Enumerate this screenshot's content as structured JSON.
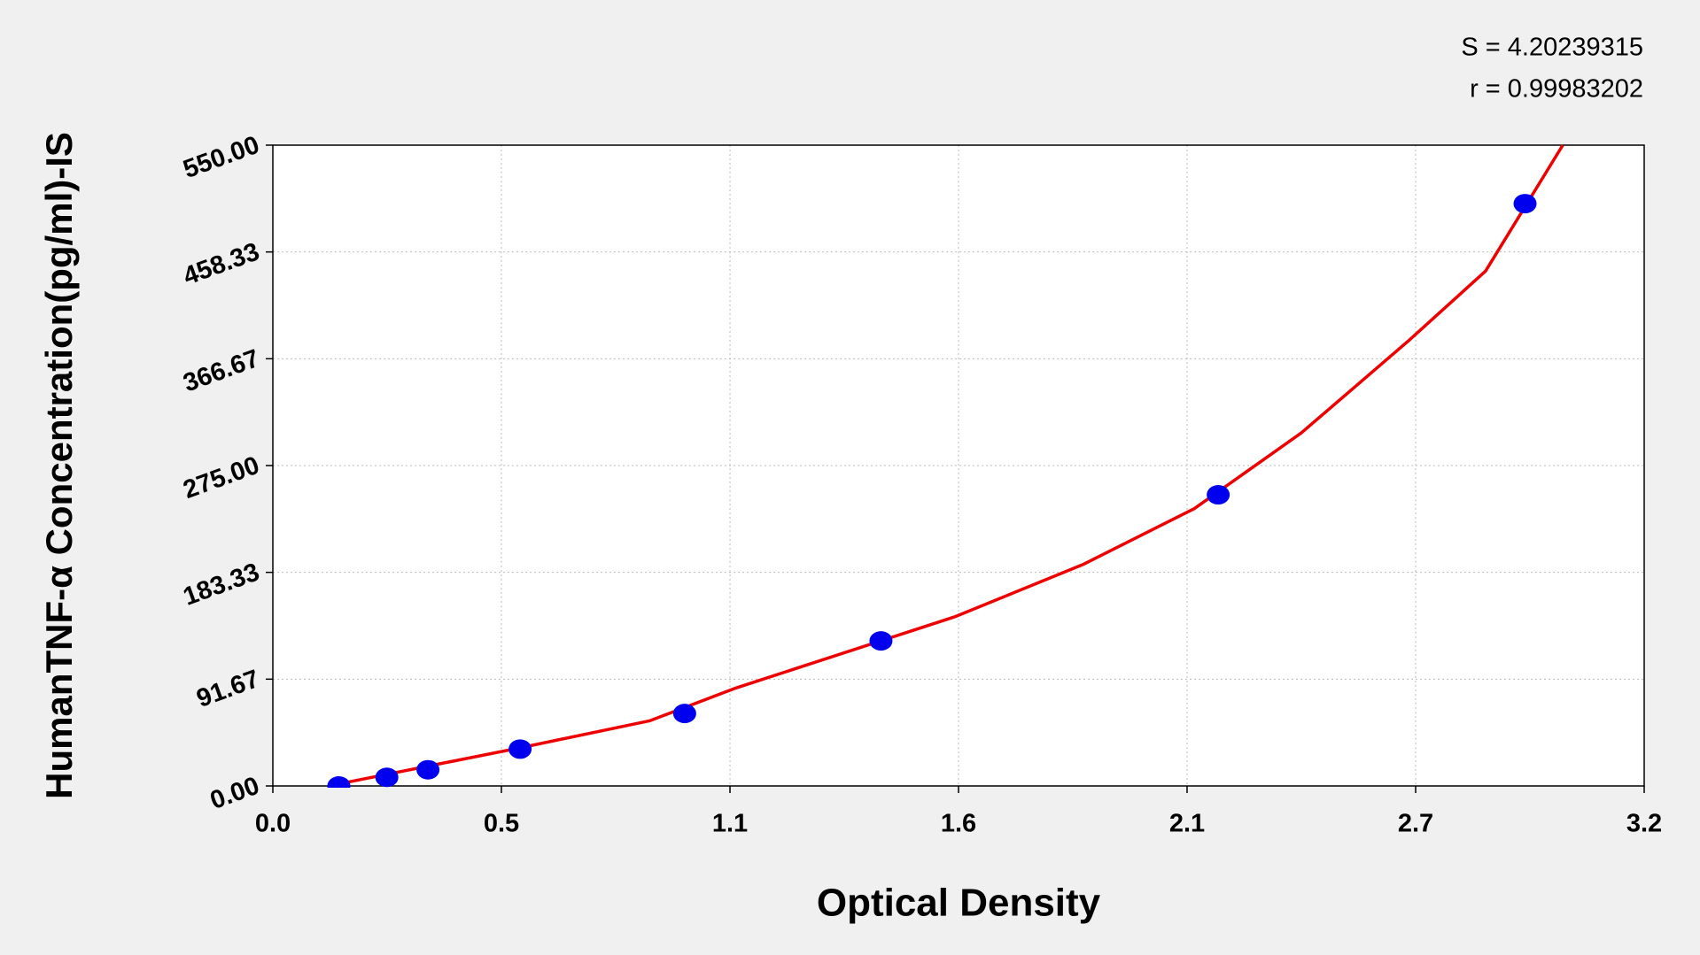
{
  "chart_data": {
    "type": "scatter",
    "xlabel": "Optical Density",
    "ylabel": "HumanTNF-α Concentration(pg/ml)-IS",
    "annotations": [
      "S = 4.20239315",
      "r = 0.99983202"
    ],
    "xlim": [
      0,
      3.2
    ],
    "ylim": [
      0,
      550
    ],
    "xticks": [
      {
        "value": 0,
        "label": "0.0"
      },
      {
        "value": 0.5333,
        "label": "0.5"
      },
      {
        "value": 1.0667,
        "label": "1.1"
      },
      1.6,
      {
        "value": 2.1333,
        "label": "2.1"
      },
      {
        "value": 2.6667,
        "label": "2.7"
      },
      3.2
    ],
    "yticks": [
      {
        "value": 0,
        "label": "0.00"
      },
      91.67,
      183.33,
      {
        "value": 275,
        "label": "275.00"
      },
      366.67,
      458.33,
      {
        "value": 550,
        "label": "550.00"
      }
    ],
    "grid": true,
    "points": {
      "color": "#0000ee",
      "x": [
        0.154,
        0.266,
        0.362,
        0.577,
        0.961,
        1.419,
        2.206,
        2.922
      ],
      "y": [
        0,
        7.4,
        13.9,
        31.6,
        62.2,
        124.5,
        249.9,
        499.8
      ]
    },
    "fit": {
      "color": "#ee0000",
      "x": [
        0.13,
        0.58,
        0.88,
        1.08,
        1.59,
        1.89,
        2.15,
        2.4,
        2.65,
        2.83,
        3.01
      ],
      "y": [
        0,
        33,
        56,
        84,
        145,
        190,
        238,
        303,
        382,
        442,
        550
      ]
    }
  }
}
